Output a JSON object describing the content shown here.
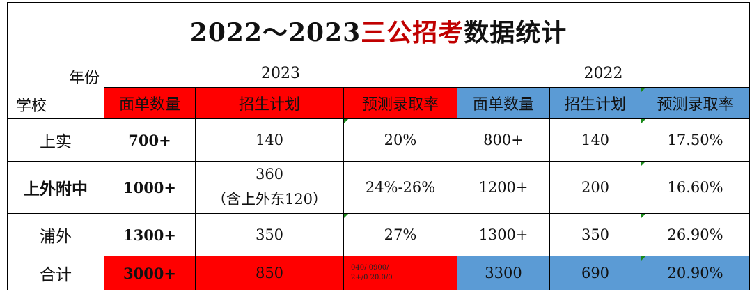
{
  "title": {
    "part1": "2022～2023",
    "part2": "三公招考",
    "part3": "数据统计"
  },
  "corner": {
    "year_label": "年份",
    "school_label": "学校"
  },
  "years": [
    "2023",
    "2022"
  ],
  "columns": [
    "面单数量",
    "招生计划",
    "预测录取率",
    "面单数量",
    "招生计划",
    "预测录取率"
  ],
  "rows": [
    {
      "school": "上实",
      "c1": "700+",
      "c2": "140",
      "c3": "20%",
      "c4": "800+",
      "c5": "140",
      "c6": "17.50%"
    },
    {
      "school": "上外附中",
      "c1": "1000+",
      "c2a": "360",
      "c2b": "（含上外东120）",
      "c3": "24%-26%",
      "c4": "1200+",
      "c5": "200",
      "c6": "16.60%"
    },
    {
      "school": "浦外",
      "c1": "1300+",
      "c2": "350",
      "c3": "27%",
      "c4": "1300+",
      "c5": "350",
      "c6": "26.90%"
    },
    {
      "school": "合计",
      "c1": "3000+",
      "c2": "850",
      "c3a": "040/  0900/",
      "c3b": "2+/0  20.0/0",
      "c4": "3300",
      "c5": "690",
      "c6": "20.90%"
    }
  ],
  "colors": {
    "red": "#ff0000",
    "blue": "#5b9bd5",
    "title_red": "#c00000"
  }
}
